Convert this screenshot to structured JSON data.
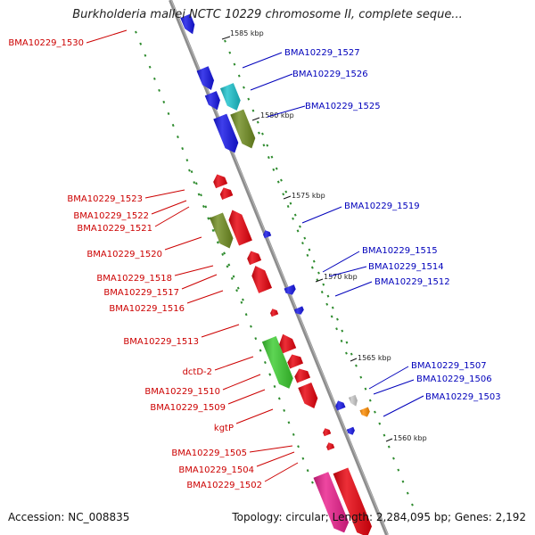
{
  "title": "Burkholderia mallei NCTC 10229 chromosome II, complete seque...",
  "footer": {
    "accession": "Accession: NC_008835",
    "topology": "Topology: circular; Length: 2,284,095 bp; Genes: 2,192"
  },
  "scale_labels": [
    "1585 kbp",
    "1580 kbp",
    "1575 kbp",
    "1570 kbp",
    "1565 kbp",
    "1560 kbp"
  ],
  "colors": {
    "backbone": "#8c8c8c",
    "label_left": "#cc0000",
    "label_right": "#0000bb",
    "red": "#e8000b",
    "blue": "#1414e6",
    "cyan": "#1ac2cc",
    "olive": "#6f8c1f",
    "green": "#3acb2e",
    "magenta": "#ea1e8c",
    "gray": "#c8c8c8",
    "orange": "#ff8c00",
    "dots": "#2e8b2e"
  },
  "left_labels": [
    "BMA10229_1530",
    "BMA10229_1523",
    "BMA10229_1522",
    "BMA10229_1521",
    "BMA10229_1520",
    "BMA10229_1518",
    "BMA10229_1517",
    "BMA10229_1516",
    "BMA10229_1513",
    "dctD-2",
    "BMA10229_1510",
    "BMA10229_1509",
    "kgtP",
    "BMA10229_1505",
    "BMA10229_1504",
    "BMA10229_1502"
  ],
  "right_labels": [
    "BMA10229_1527",
    "BMA10229_1526",
    "BMA10229_1525",
    "BMA10229_1519",
    "BMA10229_1515",
    "BMA10229_1514",
    "BMA10229_1512",
    "BMA10229_1507",
    "BMA10229_1506",
    "BMA10229_1503"
  ]
}
